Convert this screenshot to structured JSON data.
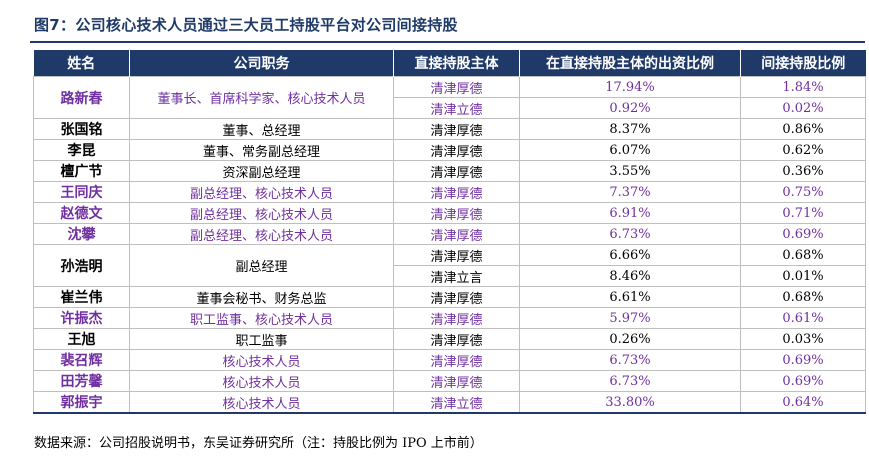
{
  "title": "图7：公司核心技术人员通过三大员工持股平台对公司间接持股",
  "headers": [
    "姓名",
    "公司职务",
    "直接持股主体",
    "在直接持股主体的出资比例",
    "间接持股比例"
  ],
  "rows": [
    {
      "name": "路新春",
      "role": "董事长、首席科学家、核心技术人员",
      "highlight": true,
      "holdings": [
        {
          "entity": "清津厚德",
          "contribution": "17.94%",
          "indirect": "1.84%"
        },
        {
          "entity": "清津立德",
          "contribution": "0.92%",
          "indirect": "0.02%"
        }
      ]
    },
    {
      "name": "张国铭",
      "role": "董事、总经理",
      "highlight": false,
      "holdings": [
        {
          "entity": "清津厚德",
          "contribution": "8.37%",
          "indirect": "0.86%"
        }
      ]
    },
    {
      "name": "李昆",
      "role": "董事、常务副总经理",
      "highlight": false,
      "holdings": [
        {
          "entity": "清津厚德",
          "contribution": "6.07%",
          "indirect": "0.62%"
        }
      ]
    },
    {
      "name": "檀广节",
      "role": "资深副总经理",
      "highlight": false,
      "holdings": [
        {
          "entity": "清津厚德",
          "contribution": "3.55%",
          "indirect": "0.36%"
        }
      ]
    },
    {
      "name": "王同庆",
      "role": "副总经理、核心技术人员",
      "highlight": true,
      "holdings": [
        {
          "entity": "清津厚德",
          "contribution": "7.37%",
          "indirect": "0.75%"
        }
      ]
    },
    {
      "name": "赵德文",
      "role": "副总经理、核心技术人员",
      "highlight": true,
      "holdings": [
        {
          "entity": "清津厚德",
          "contribution": "6.91%",
          "indirect": "0.71%"
        }
      ]
    },
    {
      "name": "沈攀",
      "role": "副总经理、核心技术人员",
      "highlight": true,
      "holdings": [
        {
          "entity": "清津厚德",
          "contribution": "6.73%",
          "indirect": "0.69%"
        }
      ]
    },
    {
      "name": "孙浩明",
      "role": "副总经理",
      "highlight": false,
      "holdings": [
        {
          "entity": "清津厚德",
          "contribution": "6.66%",
          "indirect": "0.68%"
        },
        {
          "entity": "清津立言",
          "contribution": "8.46%",
          "indirect": "0.01%"
        }
      ]
    },
    {
      "name": "崔兰伟",
      "role": "董事会秘书、财务总监",
      "highlight": false,
      "holdings": [
        {
          "entity": "清津厚德",
          "contribution": "6.61%",
          "indirect": "0.68%"
        }
      ]
    },
    {
      "name": "许振杰",
      "role": "职工监事、核心技术人员",
      "highlight": true,
      "holdings": [
        {
          "entity": "清津厚德",
          "contribution": "5.97%",
          "indirect": "0.61%"
        }
      ]
    },
    {
      "name": "王旭",
      "role": "职工监事",
      "highlight": false,
      "holdings": [
        {
          "entity": "清津厚德",
          "contribution": "0.26%",
          "indirect": "0.03%"
        }
      ]
    },
    {
      "name": "裴召辉",
      "role": "核心技术人员",
      "highlight": true,
      "holdings": [
        {
          "entity": "清津厚德",
          "contribution": "6.73%",
          "indirect": "0.69%"
        }
      ]
    },
    {
      "name": "田芳馨",
      "role": "核心技术人员",
      "highlight": true,
      "holdings": [
        {
          "entity": "清津厚德",
          "contribution": "6.73%",
          "indirect": "0.69%"
        }
      ]
    },
    {
      "name": "郭振宇",
      "role": "核心技术人员",
      "highlight": true,
      "holdings": [
        {
          "entity": "清津立德",
          "contribution": "33.80%",
          "indirect": "0.64%"
        }
      ]
    }
  ],
  "source": "数据来源：公司招股说明书，东吴证券研究所（注：持股比例为 IPO 上市前）",
  "colors": {
    "header_bg": "#1f3a68",
    "highlight_text": "#7030a0",
    "border": "#bfbfbf"
  }
}
